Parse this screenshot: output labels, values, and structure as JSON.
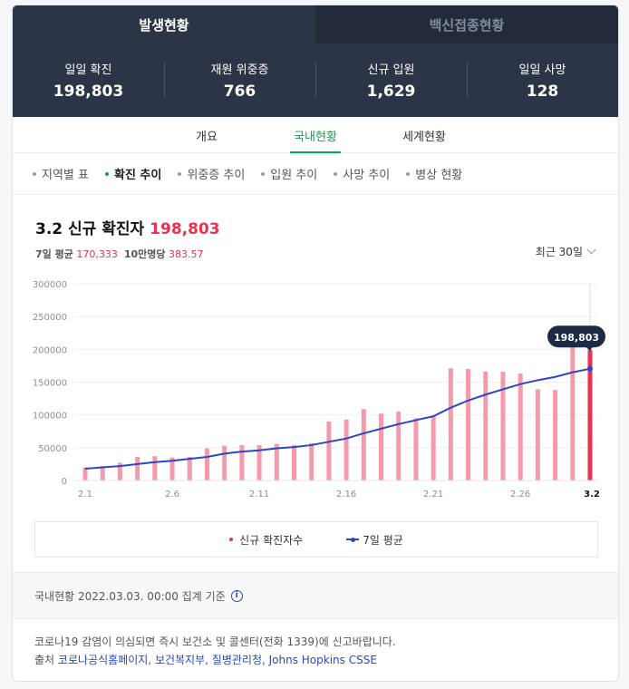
{
  "top_tabs": [
    {
      "label": "발생현황"
    },
    {
      "label": "백신접종현황"
    }
  ],
  "stats": [
    {
      "label": "일일 확진",
      "value": "198,803"
    },
    {
      "label": "재원 위중증",
      "value": "766"
    },
    {
      "label": "신규 입원",
      "value": "1,629"
    },
    {
      "label": "일일 사망",
      "value": "128"
    }
  ],
  "sub_tabs": [
    {
      "label": "개요"
    },
    {
      "label": "국내현황"
    },
    {
      "label": "세계현황"
    }
  ],
  "chips": [
    {
      "label": "지역별 표"
    },
    {
      "label": "확진 추이"
    },
    {
      "label": "위중증 추이"
    },
    {
      "label": "입원 추이"
    },
    {
      "label": "사망 추이"
    },
    {
      "label": "병상 현황"
    }
  ],
  "header": {
    "title": "3.2 신규 확진자",
    "count": "198,803",
    "avg_label": "7일 평균",
    "avg_value": "170,333",
    "per_label": "10만명당",
    "per_value": "383.57",
    "range": "최근 30일"
  },
  "chart_data": {
    "type": "bar",
    "categories": [
      "2.1",
      "2.2",
      "2.3",
      "2.4",
      "2.5",
      "2.6",
      "2.7",
      "2.8",
      "2.9",
      "2.10",
      "2.11",
      "2.12",
      "2.13",
      "2.14",
      "2.15",
      "2.16",
      "2.17",
      "2.18",
      "2.19",
      "2.20",
      "2.21",
      "2.22",
      "2.23",
      "2.24",
      "2.25",
      "2.26",
      "2.27",
      "2.28",
      "3.1",
      "3.2"
    ],
    "x_tick_labels": [
      "2.1",
      "2.6",
      "2.11",
      "2.16",
      "2.21",
      "2.26",
      "3.2"
    ],
    "series": [
      {
        "name": "신규 확진자수",
        "values": [
          20000,
          22000,
          27000,
          36000,
          37000,
          35000,
          36000,
          49000,
          53000,
          54000,
          54000,
          56000,
          54000,
          57000,
          90000,
          93000,
          109000,
          102000,
          105000,
          95000,
          99000,
          171000,
          170000,
          166000,
          166000,
          163000,
          139000,
          138000,
          219000,
          198803
        ]
      },
      {
        "name": "7일 평균",
        "values": [
          18000,
          20000,
          22000,
          25000,
          28000,
          30000,
          33000,
          36000,
          41000,
          44000,
          46000,
          49000,
          51000,
          54000,
          59000,
          64000,
          72000,
          79000,
          86000,
          92000,
          98000,
          111000,
          122000,
          131000,
          139000,
          147000,
          153000,
          158000,
          165000,
          170333
        ]
      }
    ],
    "highlight": {
      "category": "3.2",
      "label": "198,803"
    },
    "ylim": [
      0,
      300000
    ],
    "yticks": [
      0,
      50000,
      100000,
      150000,
      200000,
      250000,
      300000
    ],
    "ytick_labels": [
      "0",
      "50000",
      "100000",
      "150000",
      "200000",
      "250000",
      "300000"
    ],
    "colors": {
      "bar": "#f59aab",
      "bar_highlight": "#e8334f",
      "line": "#2e45c8"
    },
    "grid": true,
    "legend_position": "bottom"
  },
  "legend": {
    "bars": "신규 확진자수",
    "line": "7일 평균"
  },
  "footer": {
    "basis": "국내현황 2022.03.03. 00:00 집계 기준",
    "notice": "코로나19 감염이 의심되면 즉시 보건소 및 콜센터(전화 1339)에 신고바랍니다.",
    "source_label": "출처",
    "sources": [
      "코로나공식홈페이지,",
      "보건복지부,",
      "질병관리청,",
      "Johns Hopkins CSSE"
    ]
  }
}
